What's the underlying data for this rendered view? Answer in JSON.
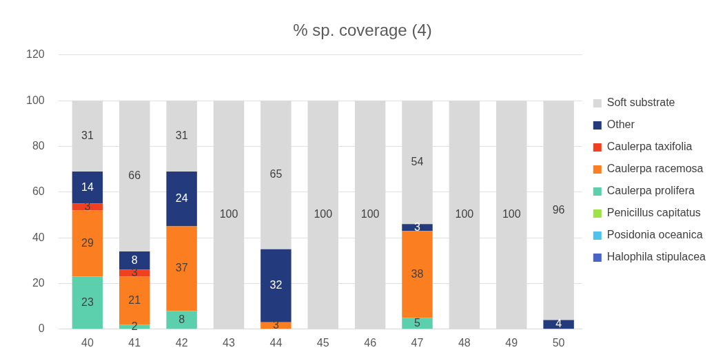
{
  "chart_data": {
    "type": "bar",
    "title": "% sp. coverage (4)",
    "stacked": true,
    "categories": [
      "40",
      "41",
      "42",
      "43",
      "44",
      "45",
      "46",
      "47",
      "48",
      "49",
      "50"
    ],
    "series": [
      {
        "name": "Halophila stipulacea",
        "color": "#4a63c8",
        "values": [
          null,
          null,
          null,
          null,
          null,
          null,
          null,
          null,
          null,
          null,
          null
        ]
      },
      {
        "name": "Posidonia oceanica",
        "color": "#4dc3ee",
        "values": [
          null,
          null,
          null,
          null,
          null,
          null,
          null,
          null,
          null,
          null,
          null
        ]
      },
      {
        "name": "Penicillus capitatus",
        "color": "#9de346",
        "values": [
          null,
          null,
          null,
          null,
          null,
          null,
          null,
          null,
          null,
          null,
          null
        ]
      },
      {
        "name": "Caulerpa prolifera",
        "color": "#5ccfad",
        "values": [
          23,
          2,
          8,
          null,
          null,
          null,
          null,
          5,
          null,
          null,
          null
        ]
      },
      {
        "name": "Caulerpa racemosa",
        "color": "#fb7f20",
        "values": [
          29,
          21,
          37,
          null,
          3,
          null,
          null,
          38,
          null,
          null,
          null
        ]
      },
      {
        "name": "Caulerpa taxifolia",
        "color": "#f0401f",
        "values": [
          3,
          3,
          null,
          null,
          null,
          null,
          null,
          null,
          null,
          null,
          null
        ]
      },
      {
        "name": "Other",
        "color": "#233a7d",
        "values": [
          14,
          8,
          24,
          null,
          32,
          null,
          null,
          3,
          null,
          null,
          4
        ]
      },
      {
        "name": "Soft substrate",
        "color": "#d9d9d9",
        "values": [
          31,
          66,
          31,
          100,
          65,
          100,
          100,
          54,
          100,
          100,
          96
        ]
      }
    ],
    "ylim": [
      0,
      120
    ],
    "yticks": [
      0,
      20,
      40,
      60,
      80,
      100,
      120
    ],
    "grid": "y",
    "legend": "right",
    "data_labels": true
  }
}
